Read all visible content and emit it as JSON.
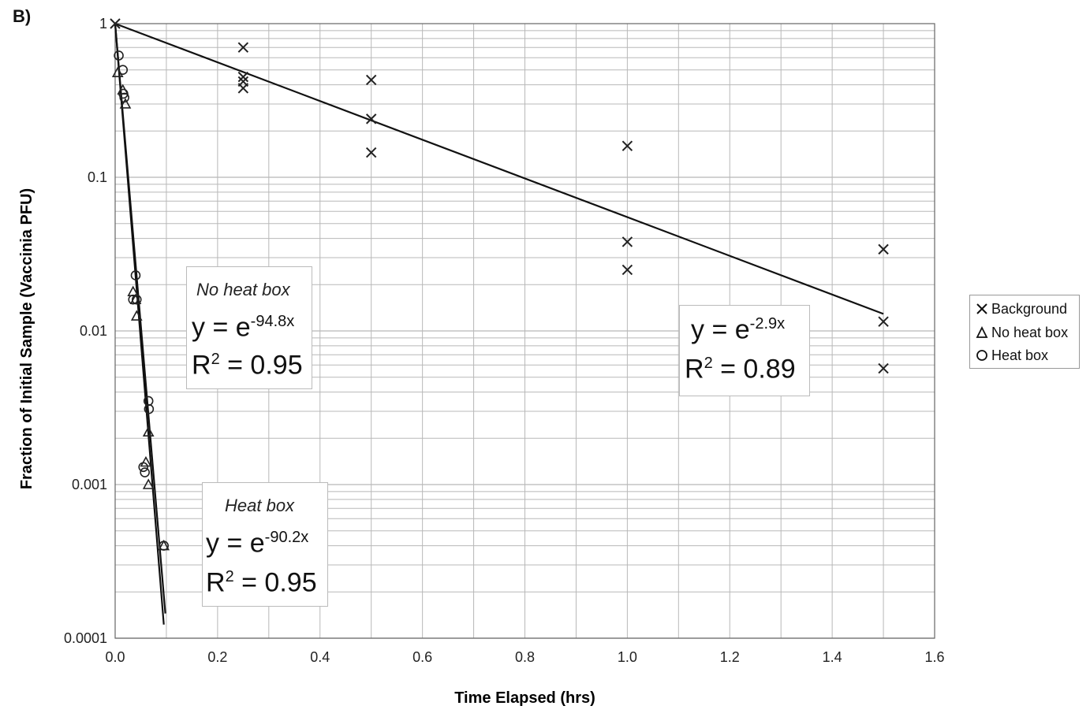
{
  "panel_label": "B)",
  "equations": [
    {
      "title": "No heat box",
      "lhs": "y = e",
      "exp": "-94.8x",
      "r2_lhs": "R",
      "r2_sup": "2",
      "r2_rhs": " = 0.95"
    },
    {
      "title": "Heat box",
      "lhs": "y = e",
      "exp": "-90.2x",
      "r2_lhs": "R",
      "r2_sup": "2",
      "r2_rhs": " = 0.95"
    },
    {
      "title": "",
      "lhs": "y = e",
      "exp": "-2.9x",
      "r2_lhs": "R",
      "r2_sup": "2",
      "r2_rhs": " = 0.89"
    }
  ],
  "legend": [
    "Background",
    "No heat box",
    "Heat box"
  ],
  "chart_data": {
    "type": "scatter",
    "title": "",
    "xlabel": "Time Elapsed (hrs)",
    "ylabel": "Fraction of Initial Sample (Vaccinia PFU)",
    "xlim": [
      0,
      1.6
    ],
    "ylim": [
      0.0001,
      1
    ],
    "y_scale": "log",
    "grid": true,
    "legend_position": "right",
    "x_ticks": [
      "0.0",
      "0.2",
      "0.4",
      "0.6",
      "0.8",
      "1.0",
      "1.2",
      "1.4",
      "1.6"
    ],
    "y_ticks": [
      "0.0001",
      "0.001",
      "0.01",
      "0.1",
      "1"
    ],
    "series": [
      {
        "name": "Background",
        "marker": "x",
        "x": [
          0,
          0.25,
          0.25,
          0.25,
          0.25,
          0.5,
          0.5,
          0.5,
          1.0,
          1.0,
          1.0,
          1.5,
          1.5,
          1.5
        ],
        "y": [
          1,
          0.7,
          0.45,
          0.42,
          0.38,
          0.43,
          0.24,
          0.145,
          0.16,
          0.038,
          0.025,
          0.034,
          0.0115,
          0.0057
        ]
      },
      {
        "name": "No heat box",
        "marker": "triangle",
        "x": [
          0.005,
          0.015,
          0.02,
          0.035,
          0.04,
          0.042,
          0.065,
          0.06,
          0.065,
          0.095
        ],
        "y": [
          0.48,
          0.37,
          0.3,
          0.018,
          0.016,
          0.0125,
          0.0022,
          0.0014,
          0.001,
          0.0004
        ]
      },
      {
        "name": "Heat box",
        "marker": "circle",
        "x": [
          0.007,
          0.015,
          0.016,
          0.018,
          0.035,
          0.04,
          0.042,
          0.065,
          0.066,
          0.055,
          0.058,
          0.095
        ],
        "y": [
          0.62,
          0.5,
          0.35,
          0.33,
          0.016,
          0.023,
          0.016,
          0.0035,
          0.0031,
          0.0013,
          0.0012,
          0.0004
        ]
      }
    ],
    "trendlines": [
      {
        "series": "Background",
        "equation": "y = e^(-2.9x)",
        "r2": 0.89,
        "x_range": [
          0,
          1.5
        ]
      },
      {
        "series": "No heat box",
        "equation": "y = e^(-94.8x)",
        "r2": 0.95,
        "x_range": [
          0,
          0.095
        ]
      },
      {
        "series": "Heat box",
        "equation": "y = e^(-90.2x)",
        "r2": 0.95,
        "x_range": [
          0,
          0.098
        ]
      }
    ],
    "colors": {
      "markers": "#222222",
      "grid": "#b8b8b8",
      "background": "#ffffff"
    }
  }
}
